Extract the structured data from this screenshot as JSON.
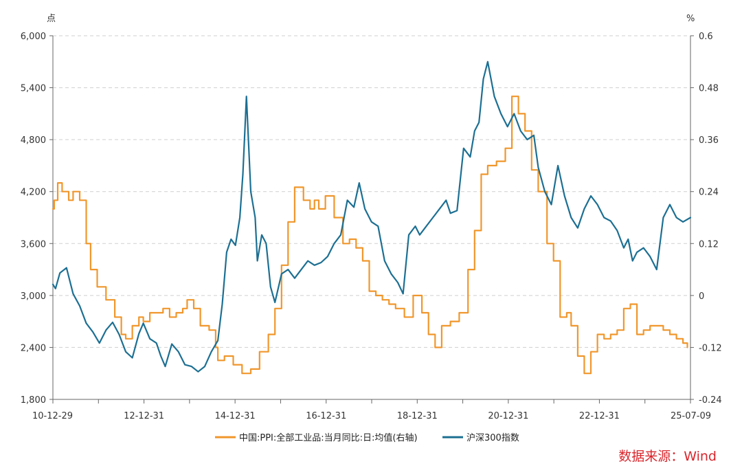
{
  "chart_data": {
    "type": "line",
    "left_unit": "点",
    "right_unit": "%",
    "left_ylim": [
      1800,
      6000
    ],
    "right_ylim": [
      -0.24,
      0.6
    ],
    "left_ticks": [
      "1,800",
      "2,400",
      "3,000",
      "3,600",
      "4,200",
      "4,800",
      "5,400",
      "6,000"
    ],
    "right_ticks": [
      "-0.24",
      "-0.12",
      "0",
      "0.12",
      "0.24",
      "0.36",
      "0.48",
      "0.6"
    ],
    "x_ticks": [
      "10-12-29",
      "12-12-31",
      "14-12-31",
      "16-12-31",
      "18-12-31",
      "20-12-31",
      "22-12-31",
      "25-07-09"
    ],
    "x_range": [
      2010.99,
      2025.52
    ],
    "grid": true,
    "legend_position": "bottom",
    "series": [
      {
        "name": "中国:PPI:全部工业品:当月同比:日:均值(右轴)",
        "axis": "right",
        "color": "#f0962b",
        "x": [
          2010.99,
          2011.02,
          2011.1,
          2011.2,
          2011.35,
          2011.45,
          2011.6,
          2011.75,
          2011.85,
          2012.0,
          2012.2,
          2012.4,
          2012.55,
          2012.65,
          2012.8,
          2012.95,
          2013.05,
          2013.2,
          2013.35,
          2013.5,
          2013.65,
          2013.8,
          2013.95,
          2014.05,
          2014.2,
          2014.35,
          2014.55,
          2014.7,
          2014.75,
          2014.9,
          2015.1,
          2015.3,
          2015.5,
          2015.7,
          2015.9,
          2016.05,
          2016.2,
          2016.35,
          2016.5,
          2016.7,
          2016.85,
          2016.95,
          2017.05,
          2017.2,
          2017.4,
          2017.6,
          2017.75,
          2017.9,
          2018.05,
          2018.2,
          2018.35,
          2018.5,
          2018.65,
          2018.8,
          2019.0,
          2019.2,
          2019.4,
          2019.55,
          2019.7,
          2019.85,
          2020.05,
          2020.25,
          2020.45,
          2020.6,
          2020.75,
          2020.9,
          2021.1,
          2021.3,
          2021.45,
          2021.6,
          2021.75,
          2021.9,
          2022.05,
          2022.25,
          2022.4,
          2022.55,
          2022.7,
          2022.8,
          2022.95,
          2023.1,
          2023.25,
          2023.4,
          2023.55,
          2023.7,
          2023.85,
          2024.0,
          2024.15,
          2024.3,
          2024.45,
          2024.6,
          2024.75,
          2024.9,
          2025.05,
          2025.2,
          2025.35,
          2025.45
        ],
        "values": [
          0.2,
          0.22,
          0.26,
          0.24,
          0.22,
          0.24,
          0.22,
          0.12,
          0.06,
          0.02,
          -0.01,
          -0.05,
          -0.09,
          -0.1,
          -0.07,
          -0.05,
          -0.06,
          -0.04,
          -0.04,
          -0.03,
          -0.05,
          -0.04,
          -0.03,
          -0.01,
          -0.03,
          -0.07,
          -0.08,
          -0.12,
          -0.15,
          -0.14,
          -0.16,
          -0.18,
          -0.17,
          -0.13,
          -0.09,
          -0.03,
          0.07,
          0.17,
          0.25,
          0.22,
          0.2,
          0.22,
          0.2,
          0.23,
          0.18,
          0.12,
          0.13,
          0.11,
          0.08,
          0.01,
          0.0,
          -0.01,
          -0.02,
          -0.03,
          -0.05,
          0.0,
          -0.04,
          -0.09,
          -0.12,
          -0.07,
          -0.06,
          -0.04,
          0.06,
          0.15,
          0.28,
          0.3,
          0.31,
          0.34,
          0.46,
          0.42,
          0.38,
          0.29,
          0.24,
          0.12,
          0.08,
          -0.05,
          -0.04,
          -0.07,
          -0.14,
          -0.18,
          -0.13,
          -0.09,
          -0.1,
          -0.09,
          -0.08,
          -0.03,
          -0.02,
          -0.09,
          -0.08,
          -0.07,
          -0.07,
          -0.08,
          -0.09,
          -0.1,
          -0.11,
          -0.12
        ]
      },
      {
        "name": "沪深300指数",
        "axis": "left",
        "color": "#1c6f92",
        "x": [
          2010.99,
          2011.05,
          2011.15,
          2011.3,
          2011.45,
          2011.6,
          2011.75,
          2011.9,
          2012.05,
          2012.2,
          2012.35,
          2012.5,
          2012.65,
          2012.8,
          2012.95,
          2013.05,
          2013.2,
          2013.35,
          2013.45,
          2013.55,
          2013.7,
          2013.85,
          2014.0,
          2014.15,
          2014.3,
          2014.45,
          2014.6,
          2014.75,
          2014.85,
          2014.95,
          2015.05,
          2015.15,
          2015.25,
          2015.32,
          2015.4,
          2015.5,
          2015.6,
          2015.65,
          2015.75,
          2015.85,
          2015.95,
          2016.05,
          2016.2,
          2016.35,
          2016.5,
          2016.65,
          2016.8,
          2016.95,
          2017.1,
          2017.25,
          2017.4,
          2017.55,
          2017.7,
          2017.85,
          2017.97,
          2018.1,
          2018.25,
          2018.4,
          2018.55,
          2018.7,
          2018.85,
          2018.97,
          2019.1,
          2019.25,
          2019.35,
          2019.5,
          2019.65,
          2019.8,
          2019.95,
          2020.05,
          2020.2,
          2020.35,
          2020.5,
          2020.6,
          2020.7,
          2020.8,
          2020.9,
          2021.05,
          2021.2,
          2021.35,
          2021.5,
          2021.65,
          2021.8,
          2021.95,
          2022.05,
          2022.2,
          2022.35,
          2022.5,
          2022.65,
          2022.8,
          2022.95,
          2023.1,
          2023.25,
          2023.4,
          2023.55,
          2023.7,
          2023.85,
          2024.0,
          2024.1,
          2024.2,
          2024.3,
          2024.45,
          2024.6,
          2024.75,
          2024.9,
          2025.05,
          2025.2,
          2025.35,
          2025.52
        ],
        "values": [
          3128,
          3080,
          3260,
          3320,
          3020,
          2880,
          2680,
          2580,
          2450,
          2600,
          2690,
          2550,
          2350,
          2280,
          2560,
          2680,
          2500,
          2450,
          2300,
          2180,
          2440,
          2350,
          2200,
          2180,
          2120,
          2180,
          2350,
          2480,
          2900,
          3500,
          3650,
          3580,
          3900,
          4400,
          5300,
          4200,
          3900,
          3400,
          3700,
          3600,
          3100,
          2920,
          3250,
          3300,
          3200,
          3300,
          3400,
          3350,
          3380,
          3450,
          3600,
          3700,
          4100,
          4020,
          4300,
          4000,
          3850,
          3800,
          3400,
          3250,
          3150,
          3020,
          3700,
          3800,
          3700,
          3800,
          3900,
          4000,
          4100,
          3950,
          3980,
          4700,
          4600,
          4900,
          5000,
          5500,
          5700,
          5300,
          5100,
          4950,
          5100,
          4900,
          4800,
          4850,
          4480,
          4200,
          4050,
          4500,
          4150,
          3900,
          3780,
          4000,
          4150,
          4050,
          3900,
          3860,
          3750,
          3550,
          3650,
          3400,
          3500,
          3550,
          3450,
          3300,
          3900,
          4050,
          3900,
          3850,
          3900
        ]
      }
    ]
  },
  "source": "数据来源：Wind"
}
